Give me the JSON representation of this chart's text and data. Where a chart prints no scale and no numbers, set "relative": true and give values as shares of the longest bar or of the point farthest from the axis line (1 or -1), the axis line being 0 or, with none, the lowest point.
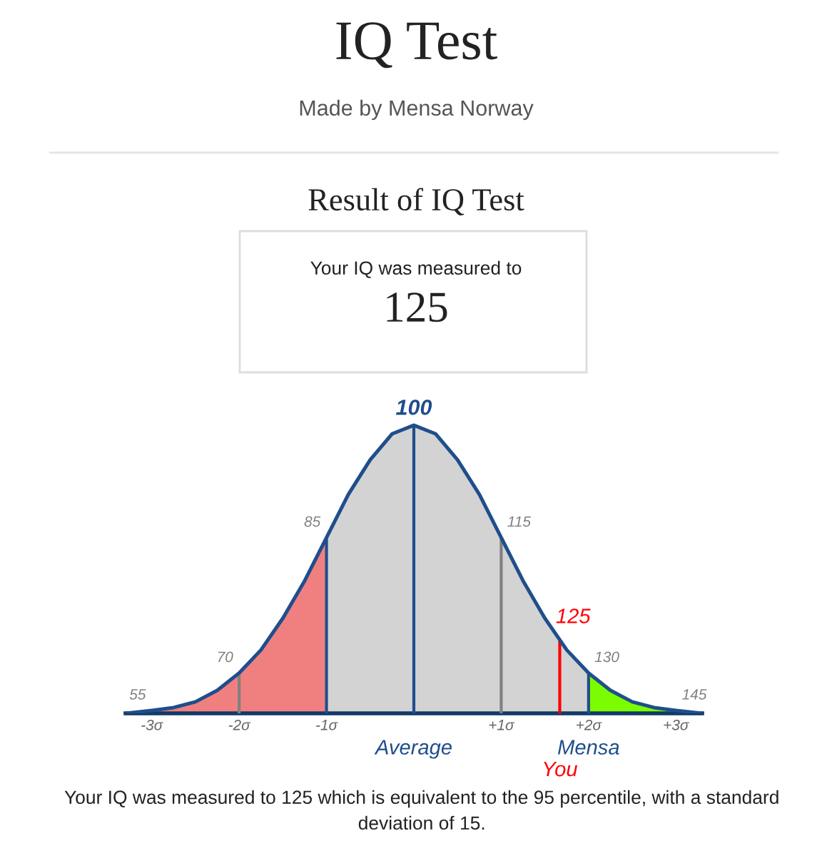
{
  "chart_data": {
    "type": "area",
    "title": "IQ Test",
    "subtitle": "Made by Mensa Norway",
    "relative": true,
    "series": [
      {
        "color": "#f08080",
        "x": [
          -3.3,
          -3,
          -2.75,
          -2.5,
          -2.25,
          -2,
          -1.75,
          -1.5,
          -1.25,
          -1
        ],
        "values": [
          0.0,
          0.01,
          0.02,
          0.04,
          0.08,
          0.14,
          0.22,
          0.33,
          0.46,
          0.61
        ]
      },
      {
        "color": "#d3d3d3",
        "x": [
          -1,
          -0.75,
          -0.5,
          -0.25,
          0,
          0.25,
          0.5,
          0.75,
          1,
          1.25,
          1.5,
          1.75,
          2
        ],
        "values": [
          0.61,
          0.76,
          0.88,
          0.97,
          1,
          0.97,
          0.88,
          0.76,
          0.61,
          0.46,
          0.33,
          0.22,
          0.14
        ]
      },
      {
        "color": "#7cfc00",
        "x": [
          2,
          2.25,
          2.5,
          2.75,
          3,
          3.3
        ],
        "values": [
          0.14,
          0.08,
          0.04,
          0.02,
          0.01,
          0.0
        ]
      },
      {
        "type": "line",
        "color": "#1f4e8c",
        "x": [
          -3.3,
          -3,
          -2.75,
          -2.5,
          -2.25,
          -2,
          -1.75,
          -1.5,
          -1.25,
          -1,
          -0.75,
          -0.5,
          -0.25,
          0,
          0.25,
          0.5,
          0.75,
          1,
          1.25,
          1.5,
          1.75,
          2,
          2.25,
          2.5,
          2.75,
          3,
          3.3
        ],
        "values": [
          0.0,
          0.01,
          0.02,
          0.04,
          0.08,
          0.14,
          0.22,
          0.33,
          0.46,
          0.61,
          0.76,
          0.88,
          0.97,
          1,
          0.97,
          0.88,
          0.76,
          0.61,
          0.46,
          0.33,
          0.22,
          0.14,
          0.08,
          0.04,
          0.02,
          0.01,
          0.0
        ]
      }
    ],
    "xlim": [
      -3.3,
      3.3
    ],
    "xticks": [
      {
        "value": -3,
        "label": "-3σ"
      },
      {
        "value": -2,
        "label": "-2σ"
      },
      {
        "value": -1,
        "label": "-1σ"
      },
      {
        "value": 1,
        "label": "+1σ"
      },
      {
        "value": 2,
        "label": "+2σ"
      },
      {
        "value": 3,
        "label": "+3σ"
      }
    ],
    "ref_lines": [
      {
        "axis": "x",
        "value": -2,
        "color": "#808080"
      },
      {
        "axis": "x",
        "value": -1,
        "color": "#1f4e8c"
      },
      {
        "axis": "x",
        "value": 0,
        "label": "Average",
        "color": "#1f4e8c"
      },
      {
        "axis": "x",
        "value": 1,
        "color": "#808080"
      },
      {
        "axis": "x",
        "value": 1.67,
        "label": "You",
        "color": "#ff0000"
      },
      {
        "axis": "x",
        "value": 2,
        "label": "Mensa",
        "color": "#1f4e8c"
      }
    ],
    "annotations": [
      "Result of IQ Test",
      "Your IQ was measured to",
      "125",
      "Your IQ was measured to 125 which is equivalent to the 95 percentile, with a standard deviation of 15.",
      {
        "text": "55",
        "x": -3,
        "y": 0.01
      },
      {
        "text": "70",
        "x": -2,
        "y": 0.14
      },
      {
        "text": "85",
        "x": -1,
        "y": 0.61
      },
      {
        "text": "100",
        "x": 0,
        "y": 1
      },
      {
        "text": "115",
        "x": 1,
        "y": 0.61
      },
      {
        "text": "125",
        "x": 1.67,
        "y": 0.25
      },
      {
        "text": "130",
        "x": 2,
        "y": 0.14
      },
      {
        "text": "145",
        "x": 3,
        "y": 0.01
      }
    ]
  }
}
